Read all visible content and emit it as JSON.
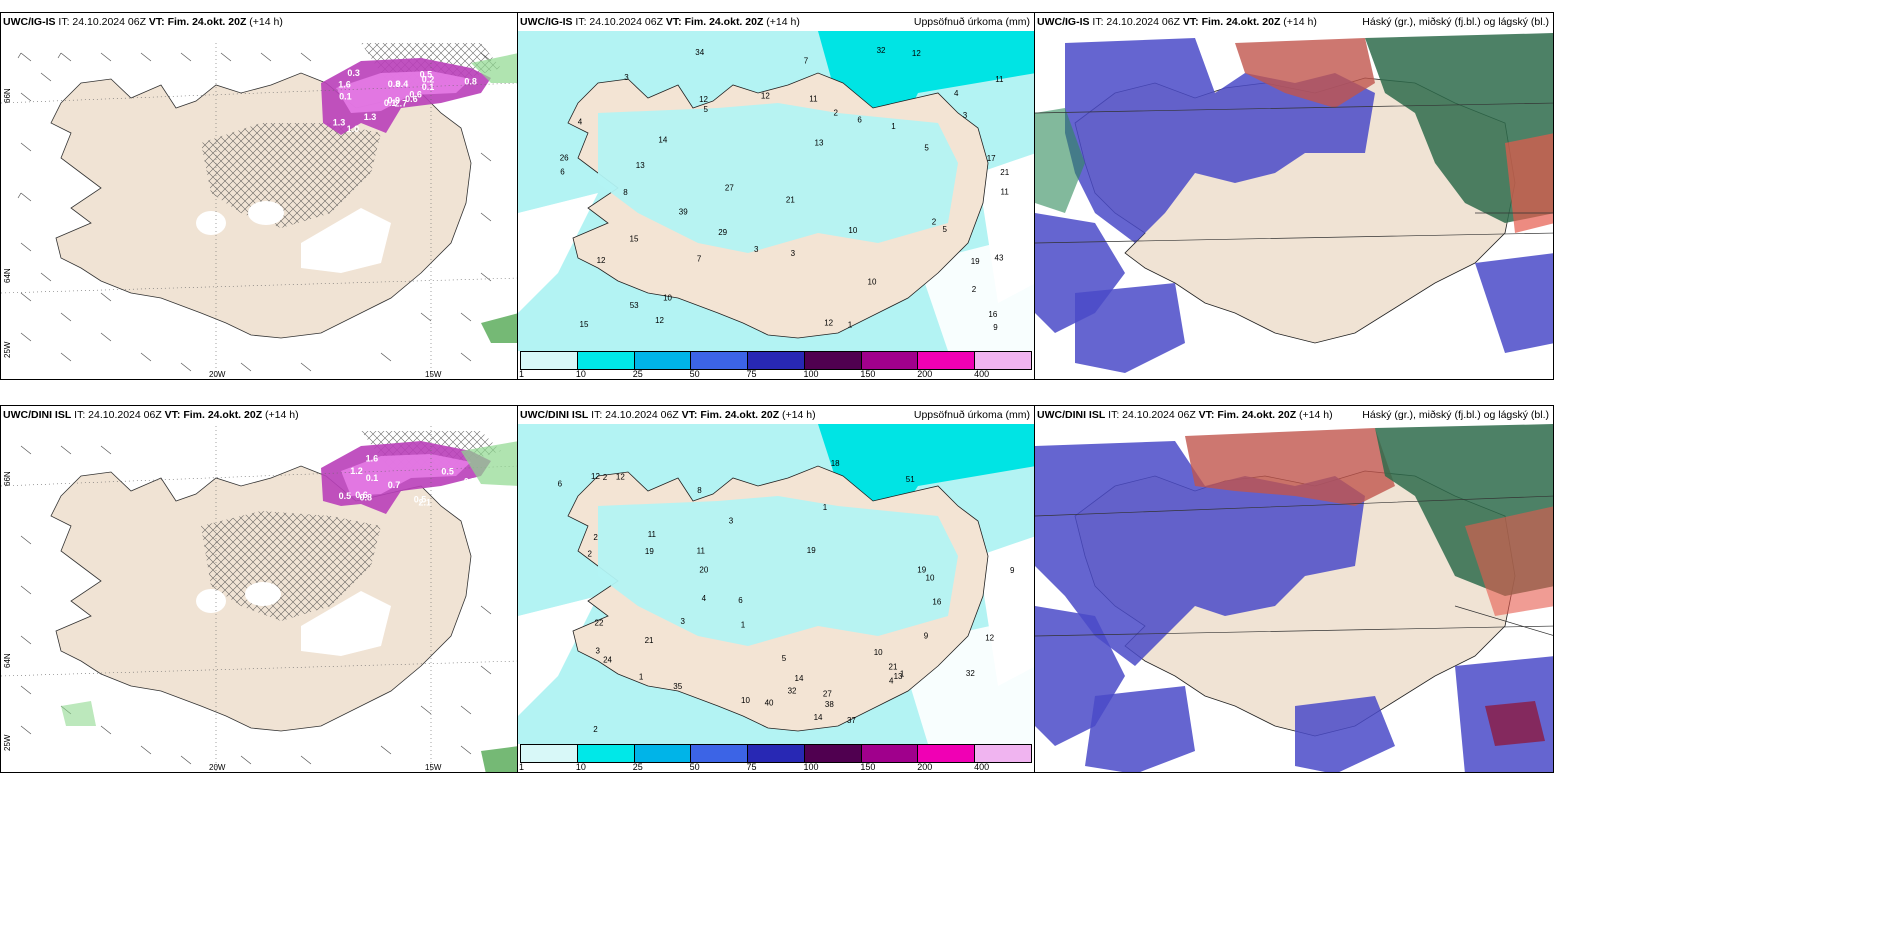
{
  "panels": {
    "r1c1": {
      "model": "UWC/IG-IS",
      "it": "IT: 24.10.2024 06Z",
      "vt": "VT: Fim. 24.okt. 20Z",
      "lead": "(+14 h)",
      "right": ""
    },
    "r1c2": {
      "model": "UWC/IG-IS",
      "it": "IT: 24.10.2024 06Z",
      "vt": "VT: Fim. 24.okt. 20Z",
      "lead": "(+14 h)",
      "right": "Uppsöfnuð úrkoma (mm)"
    },
    "r1c3": {
      "model": "UWC/IG-IS",
      "it": "IT: 24.10.2024 06Z",
      "vt": "VT: Fim. 24.okt. 20Z",
      "lead": "(+14 h)",
      "right": "Háský (gr.), miðský (fj.bl.) og lágský (bl.)"
    },
    "r2c1": {
      "model": "UWC/DINI ISL",
      "it": "IT: 24.10.2024 06Z",
      "vt": "VT: Fim. 24.okt. 20Z",
      "lead": "(+14 h)",
      "right": ""
    },
    "r2c2": {
      "model": "UWC/DINI ISL",
      "it": "IT: 24.10.2024 06Z",
      "vt": "VT: Fim. 24.okt. 20Z",
      "lead": "(+14 h)",
      "right": "Uppsöfnuð úrkoma (mm)"
    },
    "r2c3": {
      "model": "UWC/DINI ISL",
      "it": "IT: 24.10.2024 06Z",
      "vt": "VT: Fim. 24.okt. 20Z",
      "lead": "(+14 h)",
      "right": "Háský (gr.), miðský (fj.bl.) og lágský (bl.)"
    }
  },
  "colorbar": {
    "ticks": [
      "1",
      "10",
      "25",
      "50",
      "75",
      "100",
      "150",
      "200",
      "400"
    ],
    "colors": [
      "#d8f8f8",
      "#00e8e8",
      "#00b4e8",
      "#3c64e6",
      "#2828b4",
      "#500050",
      "#a0008c",
      "#f000b4",
      "#f0b4f0"
    ]
  },
  "axes": {
    "lon_20w": "20W",
    "lon_15w": "15W",
    "lat_66n": "66N",
    "lat_64n": "64N",
    "lon_25w": "25W"
  },
  "snow_values_r1": [
    "2.7",
    "1.6",
    "0.9",
    "1.3",
    "0.6",
    "1.3",
    "0.5",
    "0.4",
    "0.2",
    "0.6",
    "0.3",
    "0.3",
    "0.1",
    "0.8",
    "0.1",
    "0.1",
    "1.0",
    "0.8"
  ],
  "snow_values_r2": [
    "2.1",
    "1.6",
    "0.6",
    "1.2",
    "0.5",
    "0.5",
    "0.7",
    "0.1",
    "0.7",
    "0.8",
    "0.5"
  ],
  "precip_values_r1": [
    "5",
    "17",
    "6",
    "21",
    "27",
    "43",
    "29",
    "32",
    "19",
    "4",
    "14",
    "5",
    "5",
    "7",
    "12",
    "21",
    "39",
    "26",
    "34",
    "12",
    "16",
    "11",
    "53",
    "15",
    "13",
    "12",
    "15",
    "10",
    "12",
    "11",
    "12",
    "9",
    "8",
    "7",
    "13",
    "6",
    "11",
    "10",
    "3",
    "2",
    "1",
    "4",
    "3",
    "3",
    "2",
    "3",
    "2",
    "1",
    "12",
    "10"
  ],
  "precip_values_r2": [
    "10",
    "14",
    "19",
    "6",
    "9",
    "24",
    "32",
    "22",
    "19",
    "11",
    "21",
    "32",
    "40",
    "37",
    "51",
    "38",
    "21",
    "13",
    "12",
    "10",
    "12",
    "16",
    "19",
    "20",
    "27",
    "35",
    "18",
    "14",
    "8",
    "11",
    "12",
    "10",
    "9",
    "5",
    "4",
    "3",
    "2",
    "1",
    "6",
    "3",
    "2",
    "1",
    "4",
    "3",
    "2",
    "1",
    "2",
    "1"
  ]
}
